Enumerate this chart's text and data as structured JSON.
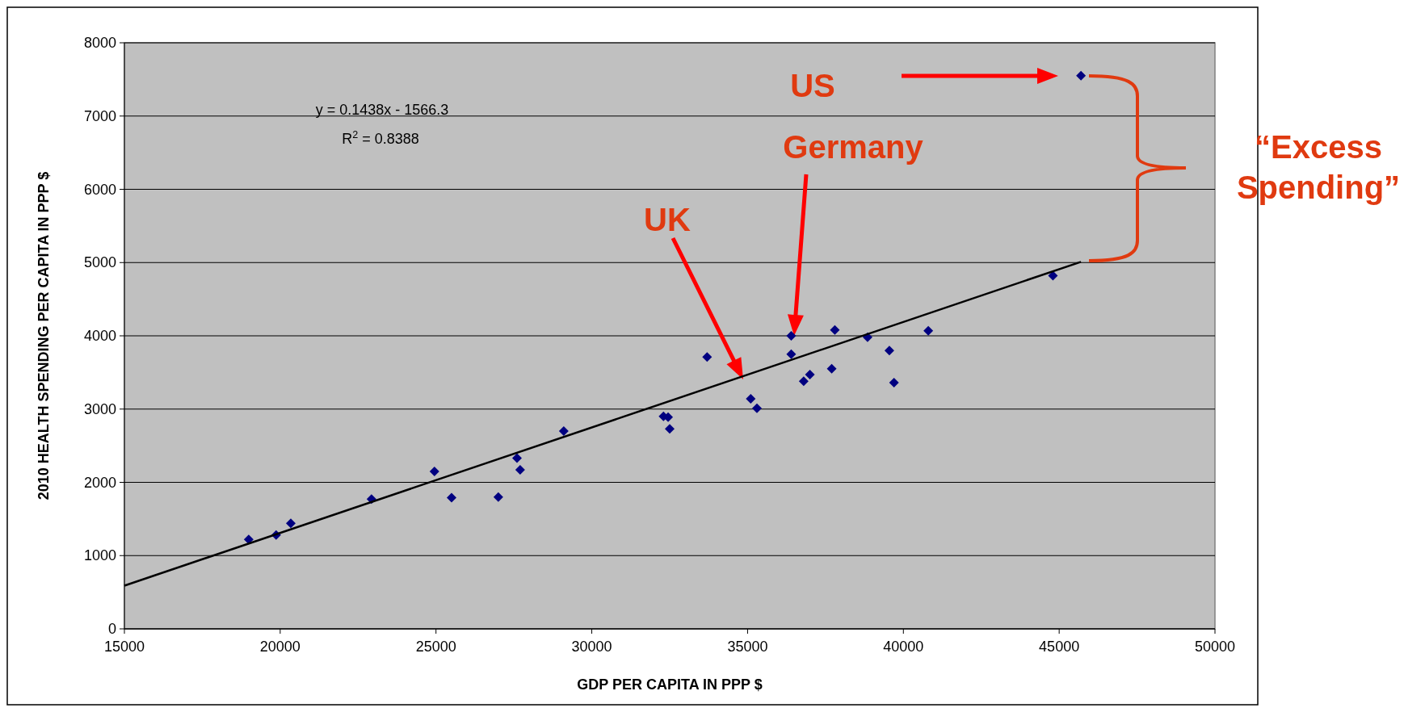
{
  "chart_data": {
    "type": "scatter",
    "xlabel": "GDP PER CAPITA IN PPP $",
    "ylabel": "2010 HEALTH SPENDING PER CAPITA IN PPP $",
    "xlim": [
      15000,
      50000
    ],
    "xticks": [
      15000,
      20000,
      25000,
      30000,
      35000,
      40000,
      45000,
      50000
    ],
    "ylim": [
      0,
      8000
    ],
    "yticks": [
      0,
      1000,
      2000,
      3000,
      4000,
      5000,
      6000,
      7000,
      8000
    ],
    "grid": "y",
    "marker": "diamond",
    "series": [
      {
        "color": "#000080",
        "x": [
          18990,
          19870,
          20340,
          22930,
          24950,
          25500,
          27000,
          27600,
          27700,
          29100,
          32300,
          32450,
          32500,
          33700,
          35100,
          35300,
          36400,
          36400,
          36800,
          37000,
          37700,
          37800,
          38850,
          39550,
          39700,
          40800,
          44800,
          45700
        ],
        "values": [
          1220,
          1280,
          1440,
          1770,
          2150,
          1790,
          1800,
          2330,
          2170,
          2700,
          2900,
          2890,
          2730,
          3710,
          3140,
          3010,
          4000,
          3750,
          3380,
          3470,
          3550,
          4080,
          3980,
          3800,
          3360,
          4070,
          4820,
          7550
        ]
      },
      {
        "type": "line",
        "color": "#000000",
        "marker": "none",
        "x": [
          15000,
          45700
        ],
        "values": [
          590,
          5010
        ]
      }
    ],
    "annotations": [
      "y = 0.1438x - 1566.3",
      "R$^{2}$ = 0.8388",
      "US",
      "Germany",
      "UK",
      "“Excess Spending”"
    ]
  }
}
